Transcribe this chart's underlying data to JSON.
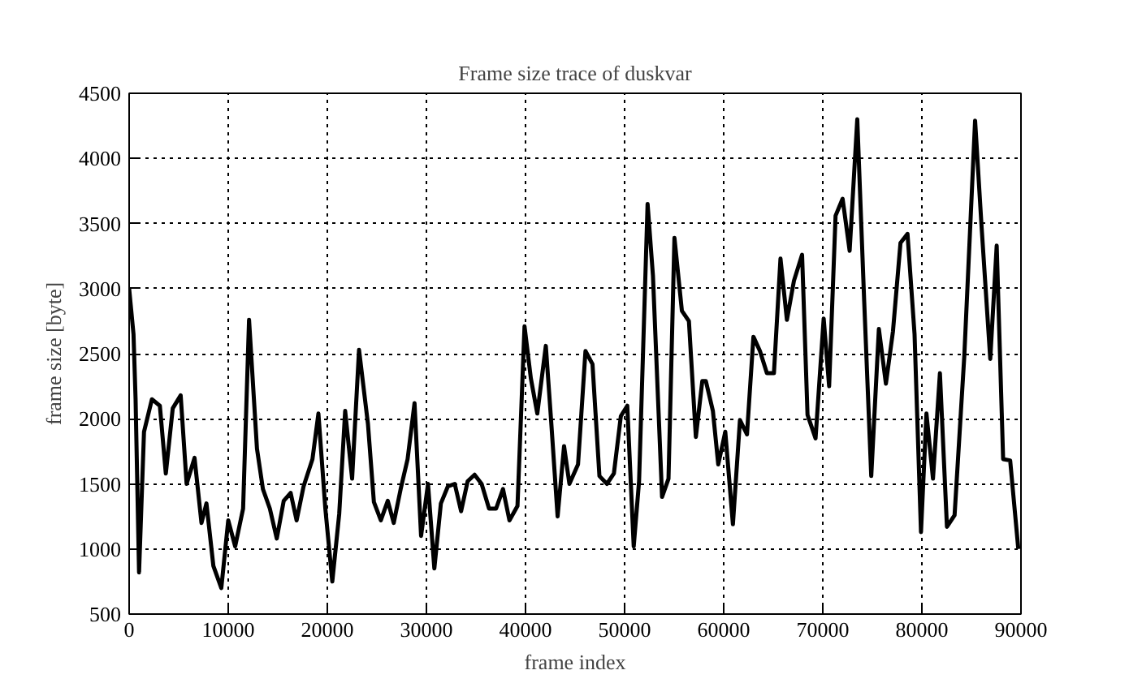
{
  "chart_data": {
    "type": "line",
    "title": "Frame size trace of duskvar",
    "xlabel": "frame index",
    "ylabel": "frame size [byte]",
    "xlim": [
      0,
      90000
    ],
    "ylim": [
      500,
      4500
    ],
    "xticks": [
      0,
      10000,
      20000,
      30000,
      40000,
      50000,
      60000,
      70000,
      80000,
      90000
    ],
    "yticks": [
      500,
      1000,
      1500,
      2000,
      2500,
      3000,
      3500,
      4000,
      4500
    ],
    "grid": true,
    "series": [
      {
        "color": "#000000",
        "x": [
          0,
          440,
          650,
          1000,
          1500,
          2300,
          3100,
          3700,
          4400,
          5200,
          5800,
          6600,
          7300,
          7800,
          8500,
          9300,
          10000,
          10700,
          11500,
          12100,
          12900,
          13500,
          14200,
          14900,
          15600,
          16300,
          16900,
          17600,
          18500,
          19100,
          19800,
          20500,
          21200,
          21800,
          22500,
          23200,
          24100,
          24700,
          25400,
          26100,
          26700,
          27400,
          28100,
          28800,
          29460,
          30160,
          30800,
          31460,
          32160,
          32860,
          33500,
          34160,
          34860,
          35570,
          36320,
          37030,
          37730,
          38380,
          39190,
          39900,
          40540,
          41190,
          42050,
          42590,
          43240,
          43890,
          44430,
          45300,
          46050,
          46760,
          47460,
          48220,
          48920,
          49620,
          50270,
          50920,
          51460,
          52320,
          52860,
          53780,
          54430,
          55030,
          55780,
          56490,
          57190,
          57840,
          58200,
          58910,
          59450,
          60160,
          60930,
          61640,
          62350,
          63000,
          63660,
          64360,
          65070,
          65730,
          66380,
          67090,
          67910,
          68460,
          69270,
          70090,
          70640,
          71290,
          72000,
          72710,
          73480,
          74180,
          74890,
          75660,
          76370,
          77080,
          77840,
          78550,
          79260,
          79910,
          80460,
          81120,
          81820,
          82530,
          83300,
          84280,
          85370,
          86020,
          86900,
          87550,
          88200,
          88910,
          89730
        ],
        "values": [
          3000,
          2650,
          2150,
          820,
          1900,
          2150,
          2100,
          1580,
          2080,
          2180,
          1500,
          1700,
          1200,
          1350,
          870,
          700,
          1220,
          1020,
          1310,
          2760,
          1770,
          1460,
          1310,
          1080,
          1370,
          1430,
          1220,
          1480,
          1690,
          2040,
          1310,
          750,
          1270,
          2060,
          1540,
          2530,
          1960,
          1360,
          1220,
          1370,
          1200,
          1460,
          1690,
          2120,
          1100,
          1500,
          850,
          1350,
          1480,
          1500,
          1290,
          1520,
          1570,
          1500,
          1310,
          1310,
          1460,
          1220,
          1330,
          2710,
          2310,
          2040,
          2560,
          1980,
          1250,
          1790,
          1500,
          1650,
          2520,
          2420,
          1560,
          1500,
          1580,
          2020,
          2100,
          1020,
          1520,
          3650,
          3100,
          1400,
          1540,
          3390,
          2830,
          2750,
          1860,
          2290,
          2290,
          2060,
          1650,
          1900,
          1190,
          1990,
          1880,
          2630,
          2520,
          2350,
          2350,
          3230,
          2760,
          3060,
          3260,
          2030,
          1850,
          2770,
          2250,
          3560,
          3690,
          3290,
          4300,
          2900,
          1560,
          2690,
          2270,
          2670,
          3350,
          3420,
          2650,
          1130,
          2040,
          1540,
          2350,
          1170,
          1260,
          2480,
          4290,
          3480,
          2460,
          3330,
          1690,
          1680,
          1000
        ]
      }
    ]
  }
}
